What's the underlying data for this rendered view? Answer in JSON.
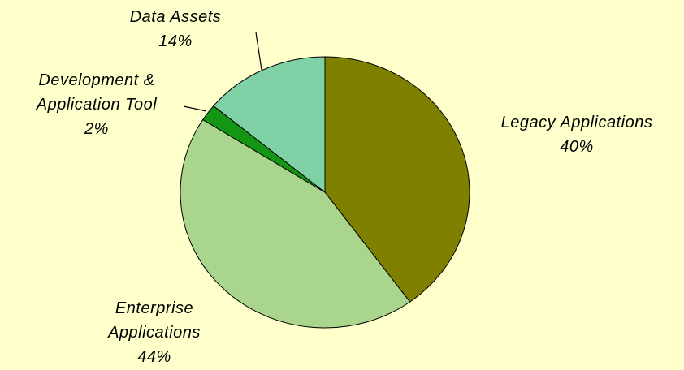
{
  "chart_data": {
    "type": "pie",
    "categories": [
      "Legacy Applications",
      "Enterprise Applications",
      "Development & Application Tool",
      "Data Assets"
    ],
    "values": [
      40,
      44,
      2,
      14
    ],
    "value_labels": [
      "40%",
      "44%",
      "2%",
      "14%"
    ],
    "colors": [
      "#808000",
      "#a9d68c",
      "#139613",
      "#80d2a6"
    ]
  }
}
